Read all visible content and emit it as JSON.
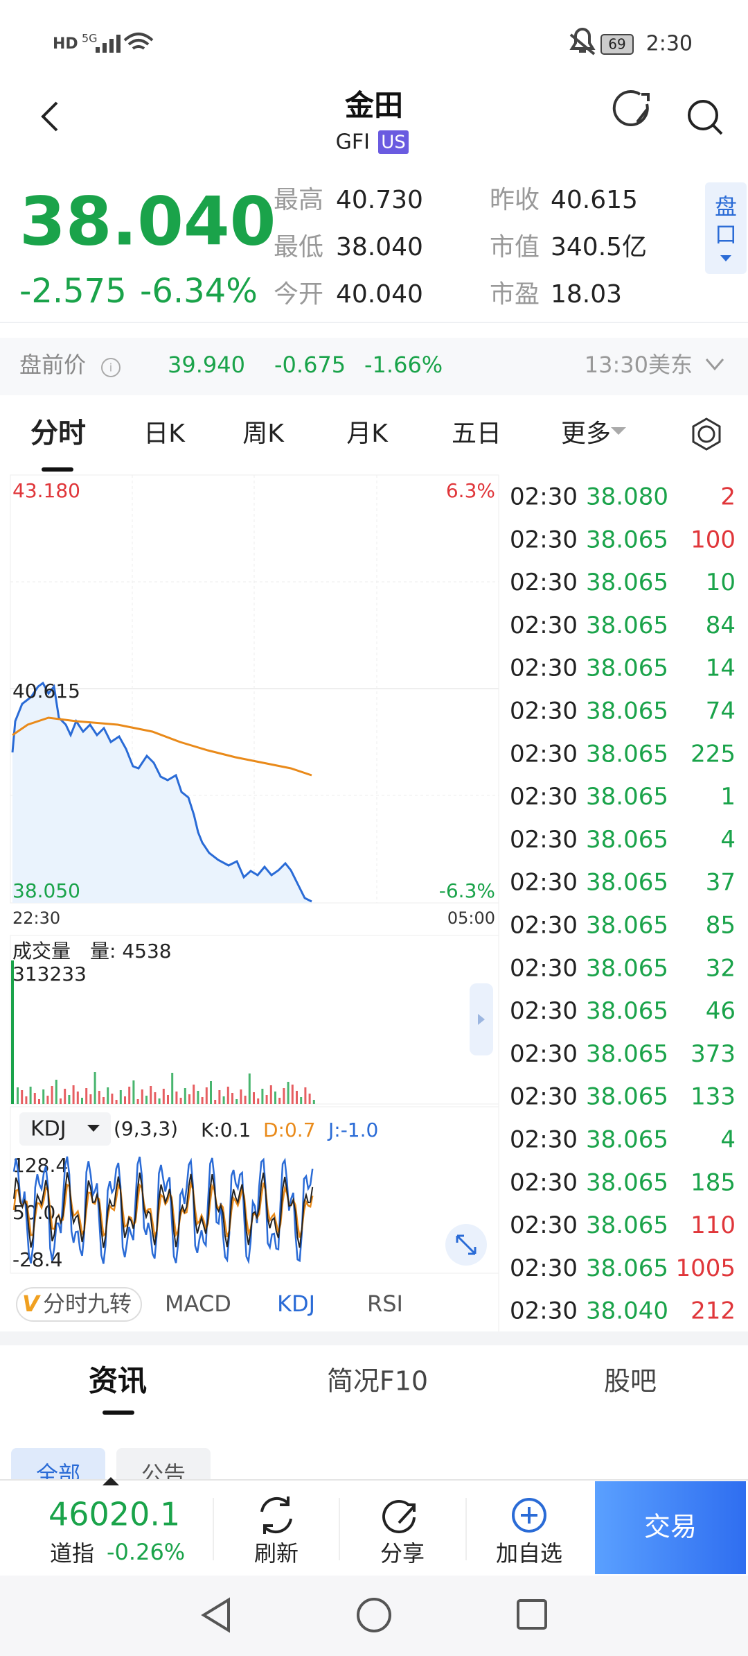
{
  "status_bar": {
    "left": [
      "HD",
      "5G"
    ],
    "battery": "69",
    "time": "2:30"
  },
  "header": {
    "title": "金田",
    "ticker": "GFI",
    "market": "US"
  },
  "quote": {
    "price": "38.040",
    "change": "-2.575",
    "change_pct": "-6.34%",
    "stats": [
      {
        "label": "最高",
        "value": "40.730"
      },
      {
        "label": "最低",
        "value": "38.040"
      },
      {
        "label": "今开",
        "value": "40.040"
      },
      {
        "label": "昨收",
        "value": "40.615"
      },
      {
        "label": "市值",
        "value": "340.5亿"
      },
      {
        "label": "市盈",
        "value": "18.03"
      }
    ],
    "side_tab": "盘口"
  },
  "premarket": {
    "label": "盘前价",
    "price": "39.940",
    "change": "-0.675",
    "change_pct": "-1.66%",
    "time": "13:30美东"
  },
  "tabs": [
    "分时",
    "日K",
    "周K",
    "月K",
    "五日",
    "更多"
  ],
  "chart": {
    "high": "43.180",
    "high_pct": "6.3%",
    "prev_close": "40.615",
    "low": "38.050",
    "low_pct": "-6.3%",
    "x_start": "22:30",
    "x_end": "05:00"
  },
  "volume": {
    "title": "成交量",
    "current": "量: 4538",
    "max": "313233"
  },
  "kdj": {
    "name": "KDJ",
    "params": "(9,3,3)",
    "k": "K:0.1",
    "d": "D:0.7",
    "j": "J:-1.0",
    "ticks": [
      "128.4",
      "50.0",
      "-28.4"
    ]
  },
  "indicator_tabs": [
    "分时九转",
    "MACD",
    "KDJ",
    "RSI"
  ],
  "trades": [
    {
      "time": "02:30",
      "price": "38.080",
      "volume": "2",
      "color": "#e0363a"
    },
    {
      "time": "02:30",
      "price": "38.065",
      "volume": "100",
      "color": "#e0363a"
    },
    {
      "time": "02:30",
      "price": "38.065",
      "volume": "10",
      "color": "#1aa34a"
    },
    {
      "time": "02:30",
      "price": "38.065",
      "volume": "84",
      "color": "#1aa34a"
    },
    {
      "time": "02:30",
      "price": "38.065",
      "volume": "14",
      "color": "#1aa34a"
    },
    {
      "time": "02:30",
      "price": "38.065",
      "volume": "74",
      "color": "#1aa34a"
    },
    {
      "time": "02:30",
      "price": "38.065",
      "volume": "225",
      "color": "#1aa34a"
    },
    {
      "time": "02:30",
      "price": "38.065",
      "volume": "1",
      "color": "#1aa34a"
    },
    {
      "time": "02:30",
      "price": "38.065",
      "volume": "4",
      "color": "#1aa34a"
    },
    {
      "time": "02:30",
      "price": "38.065",
      "volume": "37",
      "color": "#1aa34a"
    },
    {
      "time": "02:30",
      "price": "38.065",
      "volume": "85",
      "color": "#1aa34a"
    },
    {
      "time": "02:30",
      "price": "38.065",
      "volume": "32",
      "color": "#1aa34a"
    },
    {
      "time": "02:30",
      "price": "38.065",
      "volume": "46",
      "color": "#1aa34a"
    },
    {
      "time": "02:30",
      "price": "38.065",
      "volume": "373",
      "color": "#1aa34a"
    },
    {
      "time": "02:30",
      "price": "38.065",
      "volume": "133",
      "color": "#1aa34a"
    },
    {
      "time": "02:30",
      "price": "38.065",
      "volume": "4",
      "color": "#1aa34a"
    },
    {
      "time": "02:30",
      "price": "38.065",
      "volume": "185",
      "color": "#1aa34a"
    },
    {
      "time": "02:30",
      "price": "38.065",
      "volume": "110",
      "color": "#e0363a"
    },
    {
      "time": "02:30",
      "price": "38.065",
      "volume": "1005",
      "color": "#e0363a"
    },
    {
      "time": "02:30",
      "price": "38.040",
      "volume": "212",
      "color": "#e0363a"
    }
  ],
  "news_tabs": [
    "资讯",
    "简况F10",
    "股吧"
  ],
  "news_subtabs": [
    "全部",
    "公告"
  ],
  "bottom_bar": {
    "index_value": "46020.1",
    "index_name": "道指",
    "index_change": "-0.26%",
    "buttons": [
      "刷新",
      "分享",
      "加自选"
    ],
    "trade": "交易"
  }
}
